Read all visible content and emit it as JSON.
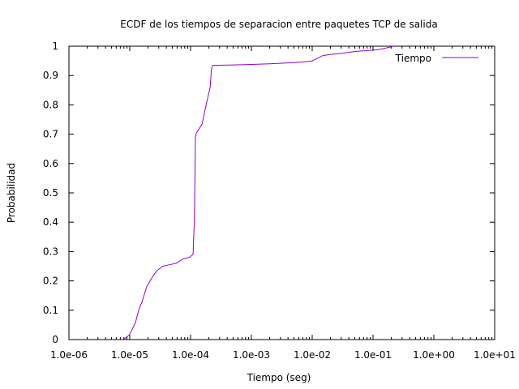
{
  "chart_data": {
    "type": "line",
    "title": "ECDF de los tiempos de separacion entre paquetes TCP de salida",
    "xlabel": "Tiempo (seg)",
    "ylabel": "Probabilidad",
    "xscale": "log",
    "xlim": [
      1e-06,
      10
    ],
    "ylim": [
      0,
      1
    ],
    "x_ticks": [
      1e-06,
      1e-05,
      0.0001,
      0.001,
      0.01,
      0.1,
      1,
      10
    ],
    "x_tick_labels": [
      "1.0e-06",
      "1.0e-05",
      "1.0e-04",
      "1.0e-03",
      "1.0e-02",
      "1.0e-01",
      "1.0e+00",
      "1.0e+01"
    ],
    "y_ticks": [
      0,
      0.1,
      0.2,
      0.3,
      0.4,
      0.5,
      0.6,
      0.7,
      0.8,
      0.9,
      1
    ],
    "y_tick_labels": [
      "0",
      "0.1",
      "0.2",
      "0.3",
      "0.4",
      "0.5",
      "0.6",
      "0.7",
      "0.8",
      "0.9",
      "1"
    ],
    "grid": false,
    "legend_position": "top-right",
    "series": [
      {
        "name": "Tiempo",
        "color": "#9400d3",
        "x": [
          7.5e-06,
          8.5e-06,
          9.8e-06,
          1.1e-05,
          1.25e-05,
          1.4e-05,
          1.6e-05,
          1.9e-05,
          2.3e-05,
          2.8e-05,
          3.5e-05,
          4.5e-05,
          5.8e-05,
          7.5e-05,
          9.5e-05,
          0.00011,
          0.000115,
          0.000118,
          0.00012,
          0.000125,
          0.000135,
          0.000155,
          0.00018,
          0.00021,
          0.00022,
          0.00023,
          0.0003,
          0.0005,
          0.001,
          0.002,
          0.004,
          0.007,
          0.01,
          0.012,
          0.015,
          0.02,
          0.03,
          0.05,
          0.08,
          0.12,
          0.18,
          0.22
        ],
        "y": [
          0.0,
          0.005,
          0.015,
          0.035,
          0.06,
          0.1,
          0.13,
          0.18,
          0.21,
          0.235,
          0.25,
          0.255,
          0.26,
          0.275,
          0.28,
          0.29,
          0.4,
          0.55,
          0.69,
          0.705,
          0.715,
          0.735,
          0.8,
          0.86,
          0.92,
          0.935,
          0.935,
          0.936,
          0.938,
          0.94,
          0.943,
          0.946,
          0.95,
          0.958,
          0.968,
          0.972,
          0.975,
          0.982,
          0.985,
          0.988,
          0.996,
          1.0
        ]
      }
    ]
  }
}
